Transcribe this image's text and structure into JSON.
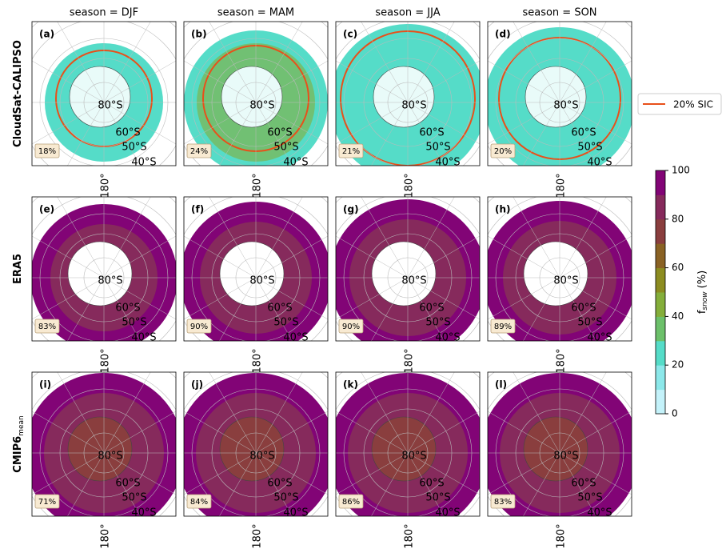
{
  "columns": [
    "season = DJF",
    "season = MAM",
    "season = JJA",
    "season = SON"
  ],
  "rows": [
    {
      "label": "CloudSat-CALIPSO",
      "panels": [
        {
          "letter": "(a)",
          "share": "18%"
        },
        {
          "letter": "(b)",
          "share": "24%"
        },
        {
          "letter": "(c)",
          "share": "21%"
        },
        {
          "letter": "(d)",
          "share": "20%"
        }
      ]
    },
    {
      "label": "ERA5",
      "panels": [
        {
          "letter": "(e)",
          "share": "83%"
        },
        {
          "letter": "(f)",
          "share": "90%"
        },
        {
          "letter": "(g)",
          "share": "90%"
        },
        {
          "letter": "(h)",
          "share": "89%"
        }
      ]
    },
    {
      "label": "CMIP6",
      "label_sub": "mean",
      "panels": [
        {
          "letter": "(i)",
          "share": "71%"
        },
        {
          "letter": "(j)",
          "share": "84%"
        },
        {
          "letter": "(k)",
          "share": "86%"
        },
        {
          "letter": "(l)",
          "share": "83%"
        }
      ]
    }
  ],
  "latitude_labels": [
    "80°S",
    "60°S",
    "50°S",
    "40°S"
  ],
  "longitude_label": "180°",
  "legend": {
    "label": "20% SIC",
    "color": "#e8501a"
  },
  "colorbar": {
    "label": "f",
    "label_sub": "snow",
    "label_unit": "(%)",
    "ticks": [
      0,
      20,
      40,
      60,
      80,
      100
    ],
    "colors": [
      "#c4f2fa",
      "#8ce8ea",
      "#55dcc8",
      "#6cc06a",
      "#84ae3a",
      "#8c8c20",
      "#8a6224",
      "#8a3e3e",
      "#862a5c",
      "#820476"
    ]
  }
}
